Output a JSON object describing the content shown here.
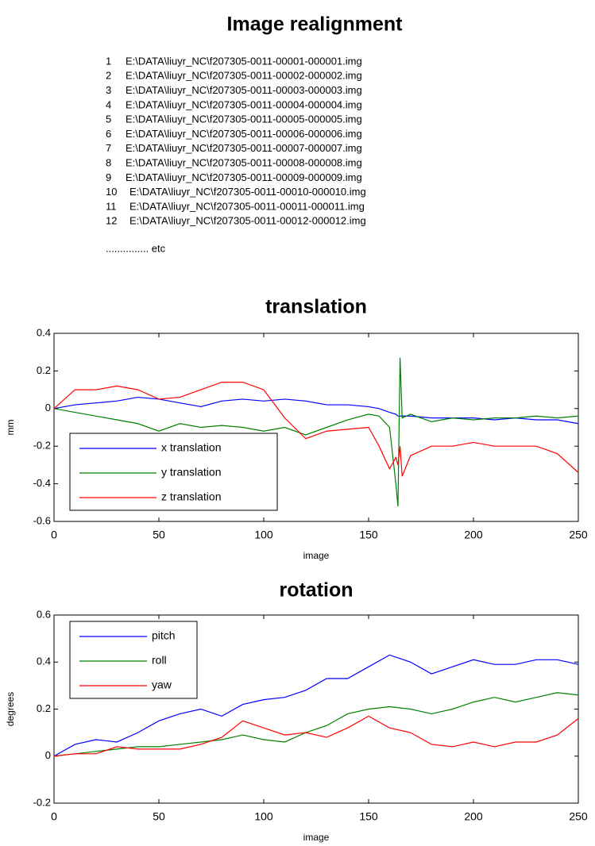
{
  "header": {
    "title": "Image realignment",
    "files": [
      {
        "index": 1,
        "path": "E:\\DATA\\liuyr_NC\\f207305-0011-00001-000001.img"
      },
      {
        "index": 2,
        "path": "E:\\DATA\\liuyr_NC\\f207305-0011-00002-000002.img"
      },
      {
        "index": 3,
        "path": "E:\\DATA\\liuyr_NC\\f207305-0011-00003-000003.img"
      },
      {
        "index": 4,
        "path": "E:\\DATA\\liuyr_NC\\f207305-0011-00004-000004.img"
      },
      {
        "index": 5,
        "path": "E:\\DATA\\liuyr_NC\\f207305-0011-00005-000005.img"
      },
      {
        "index": 6,
        "path": "E:\\DATA\\liuyr_NC\\f207305-0011-00006-000006.img"
      },
      {
        "index": 7,
        "path": "E:\\DATA\\liuyr_NC\\f207305-0011-00007-000007.img"
      },
      {
        "index": 8,
        "path": "E:\\DATA\\liuyr_NC\\f207305-0011-00008-000008.img"
      },
      {
        "index": 9,
        "path": "E:\\DATA\\liuyr_NC\\f207305-0011-00009-000009.img"
      },
      {
        "index": 10,
        "path": "E:\\DATA\\liuyr_NC\\f207305-0011-00010-000010.img"
      },
      {
        "index": 11,
        "path": "E:\\DATA\\liuyr_NC\\f207305-0011-00011-000011.img"
      },
      {
        "index": 12,
        "path": "E:\\DATA\\liuyr_NC\\f207305-0011-00012-000012.img"
      }
    ],
    "etc": "............... etc"
  },
  "chart_data": [
    {
      "type": "line",
      "title": "translation",
      "x_label": "image",
      "y_label": "mm",
      "x": [
        0,
        10,
        20,
        30,
        40,
        50,
        60,
        70,
        80,
        90,
        100,
        110,
        120,
        130,
        140,
        150,
        155,
        160,
        163,
        164,
        165,
        166,
        170,
        180,
        190,
        200,
        210,
        220,
        230,
        240,
        250
      ],
      "series": [
        {
          "name": "x translation",
          "color": "#0000ff",
          "values": [
            0,
            0.02,
            0.03,
            0.04,
            0.06,
            0.05,
            0.03,
            0.01,
            0.04,
            0.05,
            0.04,
            0.05,
            0.04,
            0.02,
            0.02,
            0.01,
            0,
            -0.02,
            -0.03,
            -0.04,
            -0.04,
            -0.04,
            -0.04,
            -0.05,
            -0.05,
            -0.05,
            -0.06,
            -0.05,
            -0.06,
            -0.06,
            -0.08
          ]
        },
        {
          "name": "y translation",
          "color": "#008000",
          "values": [
            0,
            -0.02,
            -0.04,
            -0.06,
            -0.08,
            -0.12,
            -0.08,
            -0.1,
            -0.09,
            -0.1,
            -0.12,
            -0.1,
            -0.14,
            -0.1,
            -0.06,
            -0.03,
            -0.04,
            -0.1,
            -0.4,
            -0.52,
            0.27,
            -0.05,
            -0.03,
            -0.07,
            -0.05,
            -0.06,
            -0.05,
            -0.05,
            -0.04,
            -0.05,
            -0.04
          ]
        },
        {
          "name": "z translation",
          "color": "#ff0000",
          "values": [
            0,
            0.1,
            0.1,
            0.12,
            0.1,
            0.05,
            0.06,
            0.1,
            0.14,
            0.14,
            0.1,
            -0.05,
            -0.16,
            -0.12,
            -0.11,
            -0.1,
            -0.2,
            -0.32,
            -0.26,
            -0.3,
            -0.2,
            -0.36,
            -0.25,
            -0.2,
            -0.2,
            -0.18,
            -0.2,
            -0.2,
            -0.2,
            -0.24,
            -0.34
          ]
        }
      ],
      "xlim": [
        0,
        250
      ],
      "xticks": [
        0,
        50,
        100,
        150,
        200,
        250
      ],
      "ylim": [
        -0.6,
        0.4
      ],
      "yticks": [
        -0.6,
        -0.4,
        -0.2,
        0,
        0.2,
        0.4
      ],
      "legend": "lower left"
    },
    {
      "type": "line",
      "title": "rotation",
      "x_label": "image",
      "y_label": "degrees",
      "x": [
        0,
        10,
        20,
        30,
        40,
        50,
        60,
        70,
        80,
        90,
        100,
        110,
        120,
        130,
        140,
        150,
        160,
        170,
        180,
        190,
        200,
        210,
        220,
        230,
        240,
        250
      ],
      "series": [
        {
          "name": "pitch",
          "color": "#0000ff",
          "values": [
            0,
            0.05,
            0.07,
            0.06,
            0.1,
            0.15,
            0.18,
            0.2,
            0.17,
            0.22,
            0.24,
            0.25,
            0.28,
            0.33,
            0.33,
            0.38,
            0.43,
            0.4,
            0.35,
            0.38,
            0.41,
            0.39,
            0.39,
            0.41,
            0.41,
            0.39
          ]
        },
        {
          "name": "roll",
          "color": "#008000",
          "values": [
            0,
            0.01,
            0.02,
            0.03,
            0.04,
            0.04,
            0.05,
            0.06,
            0.07,
            0.09,
            0.07,
            0.06,
            0.1,
            0.13,
            0.18,
            0.2,
            0.21,
            0.2,
            0.18,
            0.2,
            0.23,
            0.25,
            0.23,
            0.25,
            0.27,
            0.26
          ]
        },
        {
          "name": "yaw",
          "color": "#ff0000",
          "values": [
            0,
            0.01,
            0.01,
            0.04,
            0.03,
            0.03,
            0.03,
            0.05,
            0.08,
            0.15,
            0.12,
            0.09,
            0.1,
            0.08,
            0.12,
            0.17,
            0.12,
            0.1,
            0.05,
            0.04,
            0.06,
            0.04,
            0.06,
            0.06,
            0.09,
            0.16
          ]
        }
      ],
      "xlim": [
        0,
        250
      ],
      "xticks": [
        0,
        50,
        100,
        150,
        200,
        250
      ],
      "ylim": [
        -0.2,
        0.6
      ],
      "yticks": [
        -0.2,
        0,
        0.2,
        0.4,
        0.6
      ],
      "legend": "upper left"
    }
  ]
}
